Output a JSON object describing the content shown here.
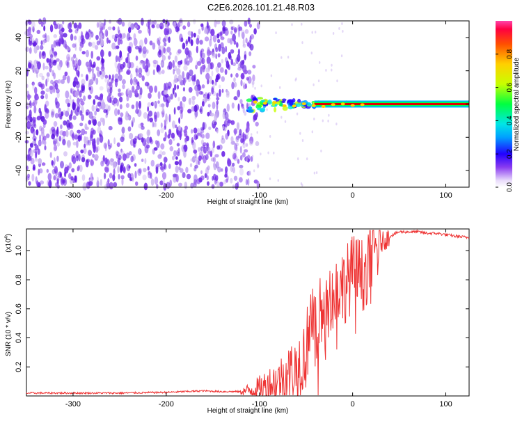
{
  "title": "C2E6.2026.101.21.48.R03",
  "colors": {
    "signal": "#ee3333",
    "purple": "#6a22e6",
    "light_purple": "#c9b2f0"
  },
  "chart_data": [
    {
      "type": "heatmap",
      "name": "spectrogram",
      "xlabel": "Height of straight line (km)",
      "ylabel": "Frequency (Hz)",
      "xlim": [
        -350,
        125
      ],
      "ylim": [
        -50,
        50
      ],
      "xticks": [
        {
          "value": -300,
          "label": "-300"
        },
        {
          "value": -200,
          "label": "-200"
        },
        {
          "value": -100,
          "label": "-100"
        },
        {
          "value": 0,
          "label": "0"
        },
        {
          "value": 100,
          "label": "100"
        }
      ],
      "yticks": [
        {
          "value": -40,
          "label": "-40"
        },
        {
          "value": -20,
          "label": "-20"
        },
        {
          "value": 0,
          "label": "0"
        },
        {
          "value": 20,
          "label": "20"
        },
        {
          "value": 40,
          "label": "40"
        }
      ],
      "noise_region_x": [
        -350,
        -110
      ],
      "carrier_onset_x": -112,
      "carrier_frequency": 0,
      "colorbar": {
        "label": "Normalized spectral amplitude",
        "range": [
          0,
          1
        ],
        "ticks": [
          {
            "value": 0.0,
            "label": "0.0"
          },
          {
            "value": 0.2,
            "label": "0.2"
          },
          {
            "value": 0.4,
            "label": "0.4"
          },
          {
            "value": 0.6,
            "label": "0.6"
          },
          {
            "value": 0.8,
            "label": "0.8"
          }
        ]
      }
    },
    {
      "type": "line",
      "name": "snr",
      "xlabel": "Height of straight line (km)",
      "ylabel": "SNR (10 * v/v)",
      "multiplier": "(x10",
      "multiplier_exp": "4",
      "multiplier_close": ")",
      "xlim": [
        -350,
        125
      ],
      "ylim": [
        0,
        1.15
      ],
      "xticks": [
        {
          "value": -300,
          "label": "-300"
        },
        {
          "value": -200,
          "label": "-200"
        },
        {
          "value": -100,
          "label": "-100"
        },
        {
          "value": 0,
          "label": "0"
        },
        {
          "value": 100,
          "label": "100"
        }
      ],
      "yticks": [
        {
          "value": 0.2,
          "label": "0.2"
        },
        {
          "value": 0.4,
          "label": "0.4"
        },
        {
          "value": 0.6,
          "label": "0.6"
        },
        {
          "value": 0.8,
          "label": "0.8"
        },
        {
          "value": 1.0,
          "label": "1.0"
        }
      ],
      "series": [
        {
          "name": "SNR",
          "x": [
            -350,
            -300,
            -250,
            -200,
            -180,
            -160,
            -140,
            -120,
            -100,
            -90,
            -80,
            -70,
            -60,
            -50,
            -45,
            -40,
            -35,
            -30,
            -25,
            -20,
            -15,
            -10,
            -5,
            0,
            5,
            10,
            15,
            20,
            25,
            30,
            40,
            50,
            60,
            70,
            80,
            90,
            100,
            110,
            125
          ],
          "y": [
            0.02,
            0.02,
            0.02,
            0.025,
            0.03,
            0.035,
            0.03,
            0.03,
            0.05,
            0.08,
            0.1,
            0.15,
            0.2,
            0.3,
            0.55,
            0.4,
            0.6,
            0.45,
            0.7,
            0.65,
            0.78,
            0.75,
            0.8,
            0.85,
            0.85,
            0.82,
            0.9,
            0.95,
            1.0,
            1.05,
            1.1,
            1.13,
            1.13,
            1.13,
            1.12,
            1.12,
            1.11,
            1.1,
            1.09
          ]
        }
      ]
    }
  ]
}
